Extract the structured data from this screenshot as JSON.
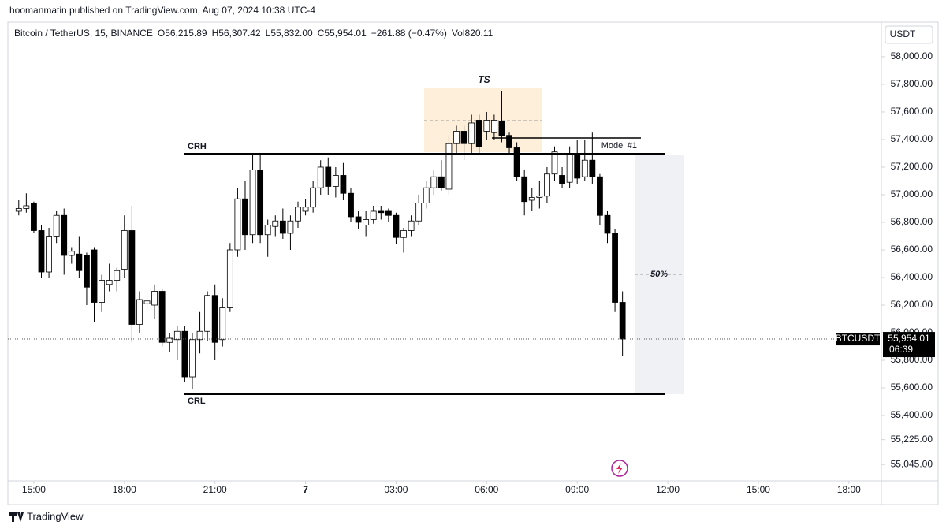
{
  "header": "hoomanmatin published on TradingView.com, Aug 07, 2024 10:38 UTC-4",
  "footer": "TradingView",
  "chart_data": {
    "type": "candlestick",
    "legend": {
      "symbol": "Bitcoin / TetherUS, 15, BINANCE",
      "items": [
        "O56,215.89",
        "H56,307.42",
        "L55,832.00",
        "C55,954.01",
        "−261.88 (−0.47%)",
        "Vol820.11"
      ]
    },
    "currency": "USDT",
    "annotations": {
      "ts": "TS",
      "crh": "CRH",
      "crl": "CRL",
      "model": "Model #1",
      "fib": "50%"
    },
    "price_label": {
      "symbol": "BTCUSDT",
      "price": "55,954.01",
      "countdown": "06:39"
    },
    "up_color": "#ffffff",
    "down_color": "#000000",
    "categories": [
      null,
      null,
      null,
      null,
      null,
      null,
      null,
      null,
      null,
      null,
      null,
      null,
      null,
      null,
      null,
      null,
      null,
      null,
      null,
      null,
      null,
      null,
      null,
      null,
      null,
      null,
      null,
      null,
      null,
      null,
      null,
      null,
      null,
      null,
      null,
      null,
      null,
      null,
      null,
      null,
      null,
      null,
      null,
      null,
      null,
      null,
      null,
      null,
      null,
      null,
      null,
      null,
      null,
      null,
      null,
      null,
      null,
      null,
      null,
      null,
      null,
      null,
      null,
      null,
      null,
      null,
      null,
      null,
      null,
      null,
      null,
      null,
      null,
      null,
      null,
      null,
      null,
      null,
      null,
      null,
      null
    ],
    "open": [
      56880,
      56900,
      56940,
      56740,
      56440,
      56700,
      56850,
      56560,
      56570,
      56560,
      56600,
      56220,
      56350,
      56380,
      56460,
      56740,
      56060,
      56210,
      56200,
      56300,
      55930,
      55950,
      56010,
      55680,
      55950,
      56010,
      56270,
      55950,
      56180,
      56600,
      56970,
      56710,
      57180,
      56710,
      56770,
      56810,
      56720,
      56810,
      56880,
      56910,
      57050,
      57200,
      57060,
      57140,
      57010,
      56840,
      56780,
      56820,
      56880,
      56880,
      56850,
      56690,
      56740,
      56810,
      56940,
      57050,
      57130,
      57040,
      57370,
      57460,
      57370,
      57540,
      57460,
      57450,
      57530,
      57430,
      57340,
      57130,
      56960,
      56980,
      56990,
      57150,
      57140,
      57090,
      57300,
      57130,
      57250,
      57130,
      56850,
      56720,
      56220
    ],
    "high": [
      56960,
      57010,
      56950,
      56780,
      56760,
      56880,
      56900,
      56620,
      56700,
      56580,
      56620,
      56420,
      56500,
      56470,
      56850,
      56920,
      56300,
      56300,
      56350,
      56320,
      56000,
      56050,
      56050,
      56000,
      56150,
      56300,
      56350,
      56250,
      56650,
      57050,
      57100,
      57300,
      57300,
      56820,
      56850,
      56900,
      56850,
      56950,
      56970,
      57100,
      57250,
      57270,
      57200,
      57230,
      57050,
      56880,
      56880,
      56920,
      56920,
      56900,
      56870,
      56760,
      56850,
      57000,
      57100,
      57180,
      57250,
      57430,
      57500,
      57500,
      57580,
      57580,
      57600,
      57580,
      57750,
      57450,
      57380,
      57180,
      57050,
      57100,
      57200,
      57350,
      57200,
      57350,
      57400,
      57400,
      57450,
      57150,
      56880,
      56750,
      56300
    ],
    "low": [
      56850,
      56870,
      56720,
      56400,
      56400,
      56650,
      56420,
      56500,
      56400,
      56200,
      56080,
      56150,
      56300,
      56300,
      56400,
      55930,
      56000,
      56150,
      56100,
      55900,
      55860,
      55800,
      55640,
      55590,
      55850,
      55940,
      55800,
      55900,
      56150,
      56550,
      56600,
      56650,
      56650,
      56550,
      56700,
      56680,
      56600,
      56760,
      56850,
      56870,
      57000,
      57000,
      56980,
      56960,
      56800,
      56750,
      56700,
      56790,
      56820,
      56800,
      56640,
      56580,
      56700,
      56780,
      56900,
      57000,
      57030,
      57000,
      57300,
      57250,
      57300,
      57300,
      57400,
      57400,
      57380,
      57300,
      57100,
      56850,
      56880,
      56900,
      56940,
      57100,
      57050,
      57050,
      57080,
      57100,
      57080,
      56780,
      56650,
      56150,
      55830
    ],
    "close": [
      56900,
      56920,
      56740,
      56440,
      56700,
      56850,
      56560,
      56590,
      56450,
      56330,
      56220,
      56380,
      56380,
      56450,
      56740,
      56060,
      56240,
      56230,
      56300,
      55930,
      55960,
      56010,
      55680,
      55950,
      56010,
      56270,
      55930,
      56180,
      56600,
      56970,
      56710,
      57180,
      56710,
      56780,
      56810,
      56720,
      56810,
      56910,
      56910,
      57050,
      57200,
      57060,
      57140,
      57010,
      56840,
      56800,
      56820,
      56880,
      56870,
      56850,
      56690,
      56740,
      56810,
      56940,
      57050,
      57130,
      57050,
      57370,
      57460,
      57370,
      57520,
      57350,
      57540,
      57540,
      57430,
      57340,
      57130,
      56950,
      56980,
      56990,
      57150,
      57310,
      57080,
      57290,
      57120,
      57250,
      57130,
      56850,
      56720,
      56220,
      55954.01
    ],
    "ylim": [
      54926,
      58251
    ],
    "yticks": [
      {
        "value": 58000,
        "label": "58,000.00"
      },
      {
        "value": 57800,
        "label": "57,800.00"
      },
      {
        "value": 57600,
        "label": "57,600.00"
      },
      {
        "value": 57400,
        "label": "57,400.00"
      },
      {
        "value": 57200,
        "label": "57,200.00"
      },
      {
        "value": 57000,
        "label": "57,000.00"
      },
      {
        "value": 56800,
        "label": "56,800.00"
      },
      {
        "value": 56600,
        "label": "56,600.00"
      },
      {
        "value": 56400,
        "label": "56,400.00"
      },
      {
        "value": 56200,
        "label": "56,200.00"
      },
      {
        "value": 56000,
        "label": "56,000.00"
      },
      {
        "value": 55800,
        "label": "55,800.00"
      },
      {
        "value": 55600,
        "label": "55,600.00"
      },
      {
        "value": 55400,
        "label": "55,400.00"
      },
      {
        "value": 55225,
        "label": "55,225.00"
      },
      {
        "value": 55045,
        "label": "55,045.00"
      }
    ],
    "xlim": [
      -1.44,
      114.3
    ],
    "xticks": [
      {
        "value": 2,
        "label": "15:00"
      },
      {
        "value": 14,
        "label": "18:00"
      },
      {
        "value": 26,
        "label": "21:00"
      },
      {
        "value": 38,
        "label": "7"
      },
      {
        "value": 50,
        "label": "03:00"
      },
      {
        "value": 62,
        "label": "06:00"
      },
      {
        "value": 74,
        "label": "09:00"
      },
      {
        "value": 86,
        "label": "12:00"
      },
      {
        "value": 98,
        "label": "15:00"
      },
      {
        "value": 110,
        "label": "18:00"
      }
    ]
  }
}
